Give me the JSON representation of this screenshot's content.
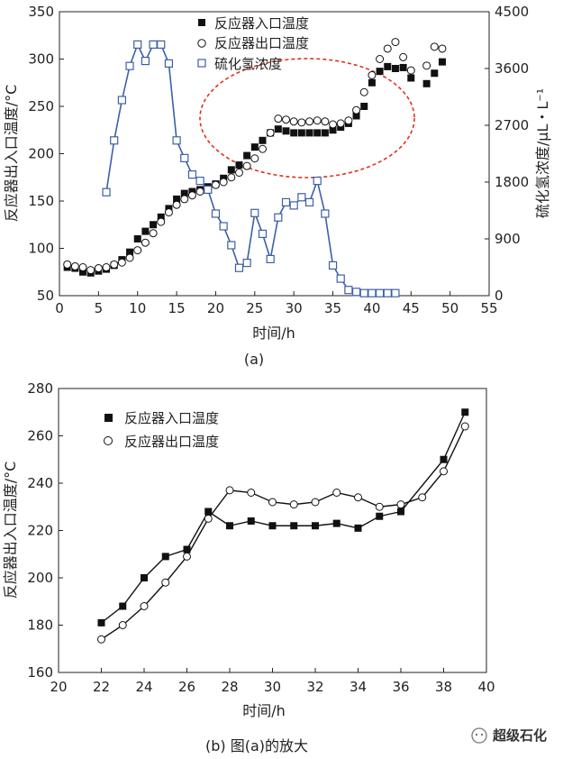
{
  "chart_data": [
    {
      "type": "line",
      "caption": "(a)",
      "xlabel": "时间/h",
      "ylabel": "反应器出入口温度/°C",
      "y2label": "硫化氢浓度/μL・L⁻¹",
      "xlim": [
        0,
        55
      ],
      "ylim": [
        50,
        350
      ],
      "y2lim": [
        0,
        4500
      ],
      "xticks": [
        0,
        5,
        10,
        15,
        20,
        25,
        30,
        35,
        40,
        45,
        50,
        55
      ],
      "yticks": [
        50,
        100,
        150,
        200,
        250,
        300,
        350
      ],
      "y2ticks": [
        0,
        900,
        1800,
        2700,
        3600,
        4500
      ],
      "grid": false,
      "legend_position": "top-center",
      "annotation": "red dashed ellipse highlighting the 22–40 h plateau",
      "series": [
        {
          "name": "反应器入口温度",
          "marker": "filled-square",
          "axis": "left",
          "line": false,
          "x": [
            1,
            2,
            3,
            4,
            5,
            6,
            7,
            8,
            9,
            10,
            11,
            12,
            13,
            14,
            15,
            16,
            17,
            18,
            19,
            20,
            21,
            22,
            23,
            24,
            25,
            26,
            27,
            28,
            29,
            30,
            31,
            32,
            33,
            34,
            35,
            36,
            37,
            38,
            39,
            40,
            41,
            42,
            43,
            44,
            45,
            47,
            48,
            49
          ],
          "y": [
            80,
            79,
            75,
            74,
            76,
            78,
            82,
            88,
            96,
            110,
            118,
            125,
            133,
            142,
            152,
            158,
            160,
            162,
            165,
            168,
            174,
            183,
            188,
            198,
            207,
            214,
            222,
            226,
            224,
            222,
            222,
            222,
            222,
            222,
            225,
            228,
            232,
            240,
            250,
            275,
            287,
            292,
            290,
            291,
            280,
            274,
            285,
            297
          ]
        },
        {
          "name": "反应器出口温度",
          "marker": "open-circle",
          "axis": "left",
          "line": false,
          "x": [
            1,
            2,
            3,
            4,
            5,
            6,
            7,
            8,
            9,
            10,
            11,
            12,
            13,
            14,
            15,
            16,
            17,
            18,
            19,
            20,
            21,
            22,
            23,
            24,
            25,
            26,
            27,
            28,
            29,
            30,
            31,
            32,
            33,
            34,
            35,
            36,
            37,
            38,
            39,
            40,
            41,
            42,
            43,
            44,
            45,
            47,
            48,
            49
          ],
          "y": [
            83,
            81,
            80,
            77,
            79,
            80,
            83,
            85,
            90,
            98,
            106,
            116,
            128,
            138,
            146,
            152,
            156,
            160,
            163,
            167,
            170,
            175,
            180,
            187,
            195,
            205,
            222,
            237,
            236,
            234,
            233,
            234,
            235,
            234,
            231,
            232,
            235,
            246,
            265,
            283,
            300,
            311,
            318,
            302,
            288,
            293,
            313,
            311
          ]
        },
        {
          "name": "硫化氢浓度",
          "marker": "open-square",
          "axis": "right",
          "line": true,
          "x": [
            6,
            7,
            8,
            9,
            10,
            11,
            12,
            13,
            14,
            15,
            16,
            17,
            18,
            19,
            20,
            21,
            22,
            23,
            24,
            25,
            26,
            27,
            28,
            29,
            30,
            31,
            32,
            33,
            34,
            35,
            36,
            37,
            38,
            39,
            40,
            41,
            42,
            43
          ],
          "y": [
            1640,
            2460,
            3100,
            3640,
            3980,
            3720,
            3980,
            3980,
            3680,
            2460,
            2180,
            1920,
            1820,
            1680,
            1300,
            1100,
            800,
            440,
            520,
            1310,
            980,
            580,
            1240,
            1480,
            1430,
            1560,
            1480,
            1820,
            1300,
            480,
            270,
            90,
            60,
            40,
            40,
            40,
            40,
            40
          ]
        }
      ]
    },
    {
      "type": "line",
      "caption": "(b) 图(a)的放大",
      "xlabel": "时间/h",
      "ylabel": "反应器出入口温度/°C",
      "xlim": [
        20,
        40
      ],
      "ylim": [
        160,
        280
      ],
      "xticks": [
        20,
        22,
        24,
        26,
        28,
        30,
        32,
        34,
        36,
        38,
        40
      ],
      "yticks": [
        160,
        180,
        200,
        220,
        240,
        260,
        280
      ],
      "grid": false,
      "legend_position": "top-left",
      "series": [
        {
          "name": "反应器入口温度",
          "marker": "filled-square",
          "line": true,
          "x": [
            22,
            23,
            24,
            25,
            26,
            27,
            28,
            29,
            30,
            31,
            32,
            33,
            34,
            35,
            36,
            38,
            39
          ],
          "y": [
            181,
            188,
            200,
            209,
            212,
            228,
            222,
            224,
            222,
            222,
            222,
            223,
            221,
            226,
            228,
            250,
            270
          ]
        },
        {
          "name": "反应器出口温度",
          "marker": "open-circle",
          "line": true,
          "x": [
            22,
            23,
            24,
            25,
            26,
            27,
            28,
            29,
            30,
            31,
            32,
            33,
            34,
            35,
            36,
            37,
            38,
            39
          ],
          "y": [
            174,
            180,
            188,
            198,
            209,
            225,
            237,
            236,
            232,
            231,
            232,
            236,
            234,
            230,
            231,
            234,
            245,
            264
          ]
        }
      ]
    }
  ],
  "watermark": "超级石化"
}
